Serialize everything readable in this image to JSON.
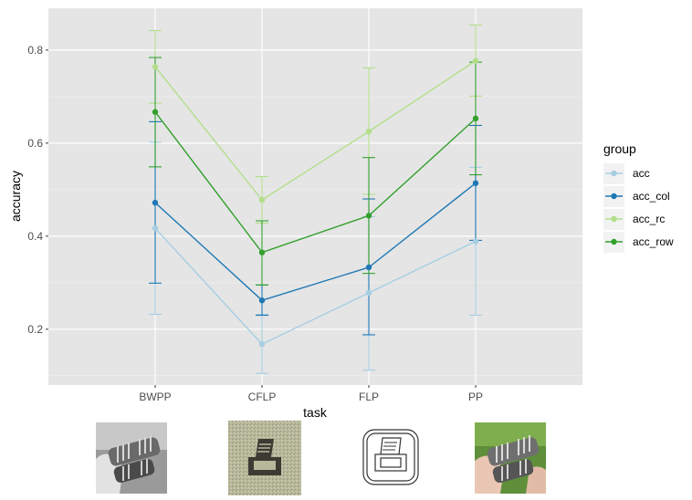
{
  "chart_data": {
    "type": "line",
    "xlabel": "task",
    "ylabel": "accuracy",
    "categories": [
      "BWPP",
      "CFLP",
      "FLP",
      "PP"
    ],
    "ylim": [
      0.08,
      0.89
    ],
    "yticks": [
      0.2,
      0.4,
      0.6,
      0.8
    ],
    "yticklabels": [
      "0.2",
      "0.4",
      "0.6",
      "0.8"
    ],
    "grid": true,
    "legend": {
      "title": "group",
      "placement": "right"
    },
    "series": [
      {
        "name": "acc",
        "color": "#a6cee3",
        "values": [
          0.417,
          0.168,
          0.278,
          0.389
        ],
        "lower": [
          0.232,
          0.105,
          0.112,
          0.23
        ],
        "upper": [
          0.602,
          0.232,
          0.442,
          0.548
        ]
      },
      {
        "name": "acc_col",
        "color": "#1f78b4",
        "values": [
          0.472,
          0.262,
          0.333,
          0.514
        ],
        "lower": [
          0.299,
          0.23,
          0.188,
          0.391
        ],
        "upper": [
          0.646,
          0.295,
          0.48,
          0.638
        ]
      },
      {
        "name": "acc_rc",
        "color": "#b2df8a",
        "values": [
          0.764,
          0.478,
          0.625,
          0.777
        ],
        "lower": [
          0.686,
          0.428,
          0.49,
          0.701
        ],
        "upper": [
          0.842,
          0.528,
          0.762,
          0.854
        ]
      },
      {
        "name": "acc_row",
        "color": "#33a02c",
        "values": [
          0.667,
          0.365,
          0.444,
          0.653
        ],
        "lower": [
          0.549,
          0.295,
          0.32,
          0.532
        ],
        "upper": [
          0.784,
          0.433,
          0.569,
          0.774
        ]
      }
    ]
  },
  "colors": {
    "panel_background": "#e5e5e5",
    "grid": "#ffffff"
  },
  "thumbnails": [
    {
      "task": "BWPP",
      "icon": "grayscale-photo-hand-holding-component"
    },
    {
      "task": "CFLP",
      "icon": "noisy-printer-icon"
    },
    {
      "task": "FLP",
      "icon": "printer-outline-icon"
    },
    {
      "task": "PP",
      "icon": "color-photo-hand-holding-component"
    }
  ]
}
